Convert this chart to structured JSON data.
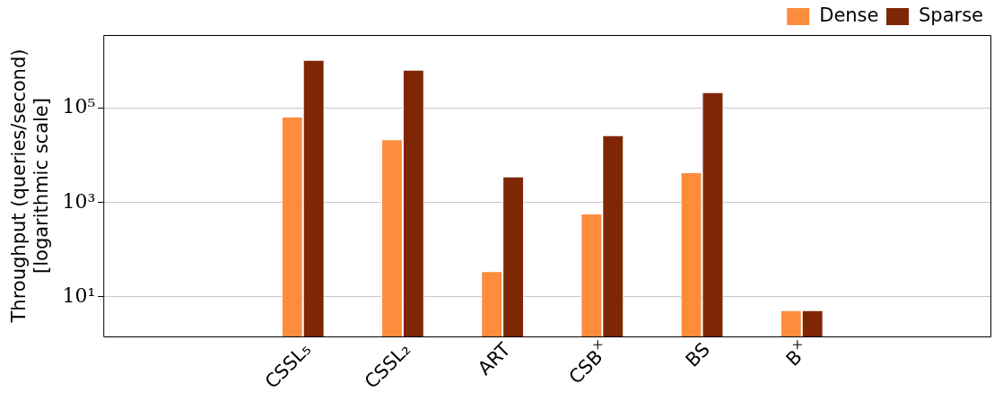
{
  "chart_data": {
    "type": "bar",
    "ylabel": "Throughput (queries/second)\n[logarithmic scale]",
    "categories": [
      "CSSL₅",
      "CSSL₂",
      "ART",
      "CSB$^{×}$",
      "BS",
      "B$^{×}$"
    ],
    "series": [
      {
        "name": "Dense",
        "color": "#fd8d3c",
        "values": [
          67000,
          22000,
          35,
          590,
          4400,
          5.2
        ]
      },
      {
        "name": "Sparse",
        "color": "#7f2704",
        "values": [
          1070000,
          660000,
          3600,
          27000,
          220000,
          5.2
        ]
      }
    ],
    "log": true,
    "ylim": [
      1.45,
      3600000
    ],
    "yticks": [
      {
        "value": 10,
        "label": "10¹"
      },
      {
        "value": 1000,
        "label": "10³"
      },
      {
        "value": 100000,
        "label": "10⁵"
      }
    ],
    "grid": "y",
    "legend": "top right"
  }
}
